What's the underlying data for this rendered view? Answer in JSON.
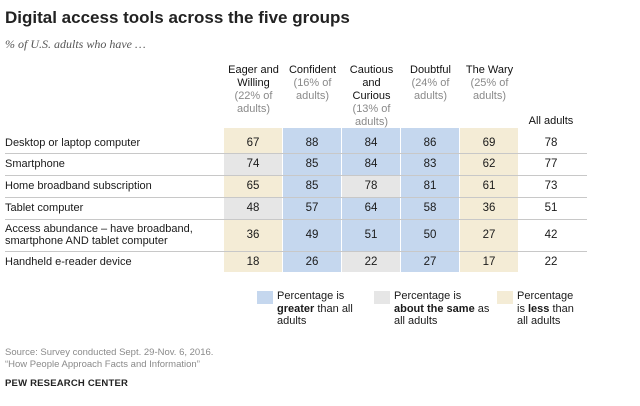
{
  "title": "Digital access tools across the five groups",
  "subtitle": "% of U.S. adults who have …",
  "colors": {
    "greater": "#c5d7ee",
    "same": "#e6e6e6",
    "less": "#f4ecd6"
  },
  "chart_data": {
    "type": "table",
    "groups": [
      {
        "name": "Eager and Willing",
        "share": "(22% of adults)"
      },
      {
        "name": "Confident",
        "share": "(16% of adults)"
      },
      {
        "name": "Cautious and Curious",
        "share": "(13% of adults)"
      },
      {
        "name": "Doubtful",
        "share": "(24% of adults)"
      },
      {
        "name": "The Wary",
        "share": "(25% of adults)"
      }
    ],
    "all_adults_label": "All adults",
    "rows": [
      {
        "label": "Desktop or laptop computer",
        "values": [
          67,
          88,
          84,
          86,
          69
        ],
        "all_adults": 78
      },
      {
        "label": "Smartphone",
        "values": [
          74,
          85,
          84,
          83,
          62
        ],
        "all_adults": 77
      },
      {
        "label": "Home broadband subscription",
        "values": [
          65,
          85,
          78,
          81,
          61
        ],
        "all_adults": 73
      },
      {
        "label": "Tablet computer",
        "values": [
          48,
          57,
          64,
          58,
          36
        ],
        "all_adults": 51
      },
      {
        "label": "Access abundance – have broadband, smartphone AND tablet computer",
        "values": [
          36,
          49,
          51,
          50,
          27
        ],
        "all_adults": 42
      },
      {
        "label": "Handheld e-reader device",
        "values": [
          18,
          26,
          22,
          27,
          17
        ],
        "all_adults": 22
      }
    ],
    "shading": [
      [
        "less",
        "greater",
        "greater",
        "greater",
        "less"
      ],
      [
        "same",
        "greater",
        "greater",
        "greater",
        "less"
      ],
      [
        "less",
        "greater",
        "same",
        "greater",
        "less"
      ],
      [
        "same",
        "greater",
        "greater",
        "greater",
        "less"
      ],
      [
        "less",
        "greater",
        "greater",
        "greater",
        "less"
      ],
      [
        "less",
        "greater",
        "same",
        "greater",
        "less"
      ]
    ]
  },
  "legend": [
    {
      "key": "greater",
      "pre": "Percentage is",
      "bold": "greater",
      "post": "than all adults"
    },
    {
      "key": "same",
      "pre": "Percentage is",
      "bold": "about the same",
      "post": "as all adults"
    },
    {
      "key": "less",
      "pre": "Percentage is",
      "bold": "less",
      "post": "than all adults"
    }
  ],
  "source_line1": "Source: Survey conducted Sept. 29-Nov. 6, 2016.",
  "source_line2": "“How People Approach Facts and Information”",
  "org": "PEW RESEARCH CENTER"
}
